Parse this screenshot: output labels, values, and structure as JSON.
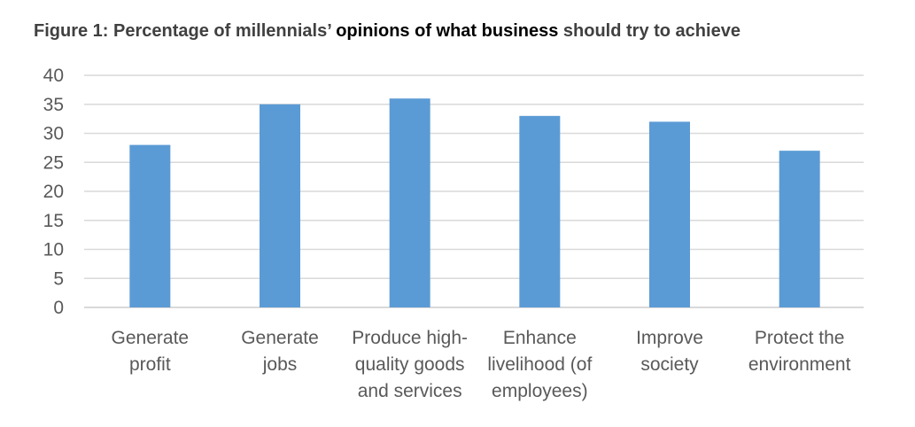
{
  "chart_data": {
    "type": "bar",
    "title_parts": [
      "Figure 1: Percentage of millennials’ ",
      "opinions of what business",
      " should try to achieve"
    ],
    "title": "Figure 1: Percentage of millennials’ opinions of what business should try to achieve",
    "categories": [
      [
        "Generate",
        "profit"
      ],
      [
        "Generate",
        "jobs"
      ],
      [
        "Produce high-",
        "quality goods",
        "and services"
      ],
      [
        "Enhance",
        "livelihood (of",
        "employees)"
      ],
      [
        "Improve",
        "society"
      ],
      [
        "Protect the",
        "environment"
      ]
    ],
    "values": [
      28,
      35,
      36,
      33,
      32,
      27
    ],
    "xlabel": "",
    "ylabel": "",
    "ylim": [
      0,
      40
    ],
    "yticks": [
      0,
      5,
      10,
      15,
      20,
      25,
      30,
      35,
      40
    ],
    "grid": true,
    "legend": "none",
    "colors": {
      "bar": "#5B9BD5",
      "grid": "#D9D9D9",
      "text": "#595959"
    }
  }
}
